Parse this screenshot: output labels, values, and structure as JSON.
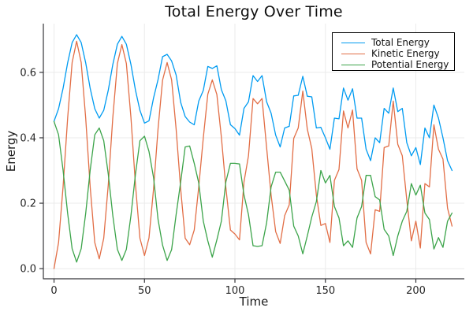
{
  "figure": {
    "title": "Total Energy Over Time",
    "background": "#ffffff"
  },
  "axes": {
    "spine_color": "#36363a",
    "grid_color": "#ebebeb",
    "tick_label_color": "#262626"
  },
  "chart_data": {
    "type": "line",
    "title": "Total Energy Over Time",
    "xlabel": "Time",
    "ylabel": "Energy",
    "xlim": [
      -5.9,
      226.8
    ],
    "ylim": [
      -0.031,
      0.749
    ],
    "x_ticks": [
      0,
      50,
      100,
      150,
      200
    ],
    "y_ticks": [
      0.0,
      0.2,
      0.4,
      0.6
    ],
    "x_tick_labels": [
      "0",
      "50",
      "100",
      "150",
      "200"
    ],
    "y_tick_labels": [
      "0.0",
      "0.2",
      "0.4",
      "0.6"
    ],
    "grid": true,
    "legend_position": "top-right",
    "x": [
      0,
      2.5,
      5,
      7.5,
      10,
      12.5,
      15,
      17.5,
      20,
      22.5,
      25,
      27.5,
      30,
      32.5,
      35,
      37.5,
      40,
      42.5,
      45,
      47.5,
      50,
      52.5,
      55,
      57.5,
      60,
      62.5,
      65,
      67.5,
      70,
      72.5,
      75,
      77.5,
      80,
      82.5,
      85,
      87.5,
      90,
      92.5,
      95,
      97.5,
      100,
      102.5,
      105,
      107.5,
      110,
      112.5,
      115,
      117.5,
      120,
      122.5,
      125,
      127.5,
      130,
      132.5,
      135,
      137.5,
      140,
      142.5,
      145,
      147.5,
      150,
      152.5,
      155,
      157.5,
      160,
      162.5,
      165,
      167.5,
      170,
      172.5,
      175,
      177.5,
      180,
      182.5,
      185,
      187.5,
      190,
      192.5,
      195,
      197.5,
      200,
      202.5,
      205,
      207.5,
      210,
      212.5,
      215,
      217.5,
      220
    ],
    "series": [
      {
        "name": "Total Energy",
        "color": "#009bf1",
        "values": [
          0.45,
          0.489,
          0.551,
          0.629,
          0.691,
          0.715,
          0.691,
          0.629,
          0.551,
          0.489,
          0.46,
          0.484,
          0.546,
          0.624,
          0.686,
          0.71,
          0.686,
          0.624,
          0.546,
          0.484,
          0.445,
          0.452,
          0.522,
          0.578,
          0.648,
          0.655,
          0.635,
          0.592,
          0.508,
          0.465,
          0.448,
          0.44,
          0.512,
          0.545,
          0.618,
          0.612,
          0.62,
          0.547,
          0.513,
          0.44,
          0.428,
          0.408,
          0.49,
          0.51,
          0.59,
          0.572,
          0.59,
          0.51,
          0.475,
          0.408,
          0.372,
          0.43,
          0.435,
          0.528,
          0.53,
          0.588,
          0.527,
          0.525,
          0.43,
          0.432,
          0.4,
          0.365,
          0.46,
          0.458,
          0.552,
          0.515,
          0.55,
          0.46,
          0.46,
          0.365,
          0.33,
          0.4,
          0.385,
          0.49,
          0.475,
          0.552,
          0.48,
          0.49,
          0.385,
          0.345,
          0.37,
          0.318,
          0.43,
          0.4,
          0.5,
          0.46,
          0.4,
          0.33,
          0.3
        ]
      },
      {
        "name": "Kinetic Energy",
        "color": "#e26e46",
        "values": [
          0.0,
          0.08,
          0.25,
          0.46,
          0.63,
          0.695,
          0.63,
          0.46,
          0.25,
          0.08,
          0.03,
          0.093,
          0.258,
          0.462,
          0.627,
          0.685,
          0.627,
          0.462,
          0.258,
          0.093,
          0.04,
          0.094,
          0.244,
          0.428,
          0.576,
          0.63,
          0.577,
          0.427,
          0.243,
          0.093,
          0.073,
          0.118,
          0.25,
          0.4,
          0.533,
          0.577,
          0.532,
          0.402,
          0.248,
          0.118,
          0.106,
          0.088,
          0.265,
          0.345,
          0.52,
          0.504,
          0.52,
          0.37,
          0.225,
          0.113,
          0.077,
          0.162,
          0.195,
          0.398,
          0.43,
          0.543,
          0.427,
          0.367,
          0.225,
          0.132,
          0.138,
          0.08,
          0.27,
          0.303,
          0.482,
          0.43,
          0.485,
          0.305,
          0.27,
          0.08,
          0.045,
          0.18,
          0.175,
          0.37,
          0.375,
          0.512,
          0.38,
          0.345,
          0.21,
          0.085,
          0.145,
          0.063,
          0.26,
          0.25,
          0.44,
          0.365,
          0.335,
          0.185,
          0.13
        ]
      },
      {
        "name": "Potential Energy",
        "color": "#3ca44a",
        "values": [
          0.45,
          0.409,
          0.301,
          0.169,
          0.061,
          0.02,
          0.061,
          0.169,
          0.301,
          0.409,
          0.43,
          0.391,
          0.288,
          0.162,
          0.059,
          0.025,
          0.059,
          0.162,
          0.288,
          0.391,
          0.405,
          0.358,
          0.278,
          0.15,
          0.072,
          0.025,
          0.058,
          0.165,
          0.265,
          0.372,
          0.375,
          0.322,
          0.262,
          0.145,
          0.085,
          0.035,
          0.088,
          0.145,
          0.265,
          0.322,
          0.322,
          0.32,
          0.225,
          0.165,
          0.07,
          0.068,
          0.07,
          0.14,
          0.25,
          0.295,
          0.295,
          0.268,
          0.24,
          0.13,
          0.1,
          0.045,
          0.1,
          0.158,
          0.205,
          0.3,
          0.262,
          0.285,
          0.19,
          0.155,
          0.07,
          0.085,
          0.065,
          0.155,
          0.19,
          0.285,
          0.285,
          0.22,
          0.21,
          0.12,
          0.1,
          0.04,
          0.1,
          0.145,
          0.175,
          0.26,
          0.225,
          0.255,
          0.17,
          0.15,
          0.06,
          0.095,
          0.065,
          0.145,
          0.17
        ]
      }
    ]
  }
}
